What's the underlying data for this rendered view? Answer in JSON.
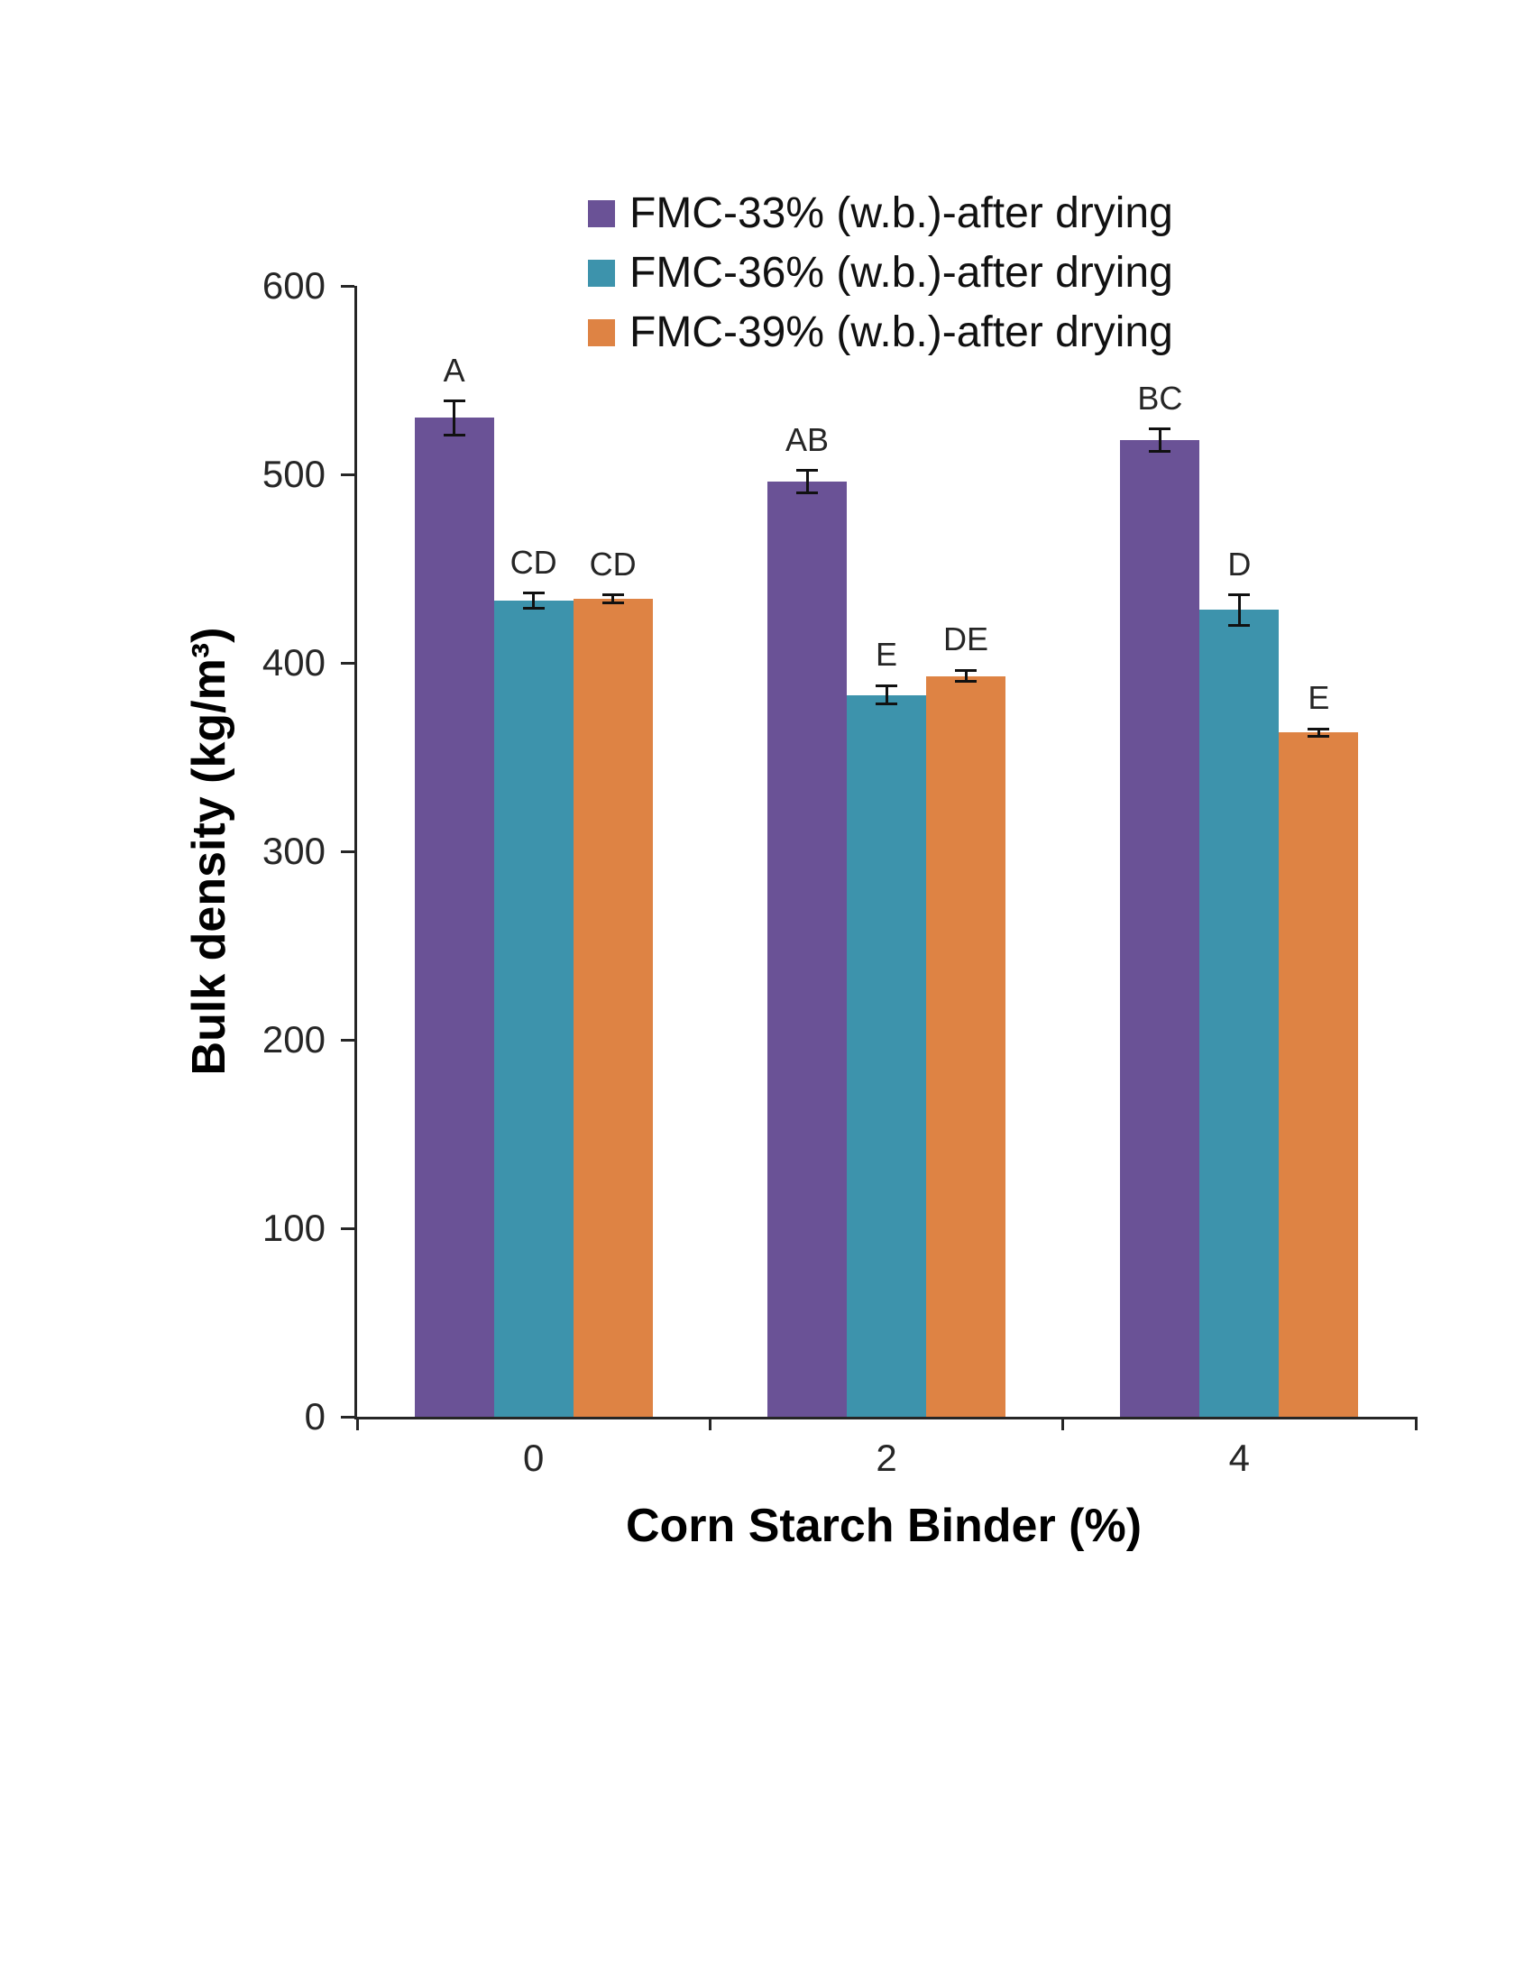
{
  "chart_data": {
    "type": "bar",
    "title": "",
    "xlabel": "Corn Starch Binder (%)",
    "ylabel": "Bulk density (kg/m³)",
    "ylim": [
      0,
      600
    ],
    "yticks": [
      0,
      100,
      200,
      300,
      400,
      500,
      600
    ],
    "categories": [
      "0",
      "2",
      "4"
    ],
    "grid": false,
    "legend_position": "top",
    "error_bars": true,
    "series": [
      {
        "name": "FMC-33% (w.b.)-after drying",
        "color": "#6A5296",
        "values": [
          530,
          496,
          518
        ],
        "errors": [
          9,
          6,
          6
        ],
        "labels": [
          "A",
          "AB",
          "BC"
        ]
      },
      {
        "name": "FMC-36% (w.b.)-after drying",
        "color": "#3D93AC",
        "values": [
          433,
          383,
          428
        ],
        "errors": [
          4,
          5,
          8
        ],
        "labels": [
          "CD",
          "E",
          "D"
        ]
      },
      {
        "name": "FMC-39% (w.b.)-after drying",
        "color": "#DE8344",
        "values": [
          434,
          393,
          363
        ],
        "errors": [
          2,
          3,
          2
        ],
        "labels": [
          "CD",
          "DE",
          "E"
        ]
      }
    ]
  }
}
